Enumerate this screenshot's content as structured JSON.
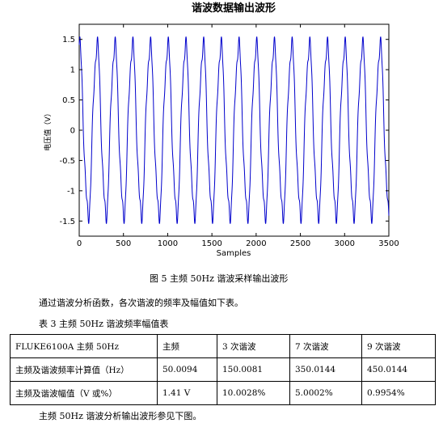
{
  "chart_data": {
    "type": "line",
    "title": "谐波数据输出波形",
    "xlabel": "Samples",
    "ylabel": "电压值（V）",
    "xlim": [
      0,
      3500
    ],
    "ylim": [
      -1.75,
      1.75
    ],
    "x_ticks": [
      "0",
      "500",
      "1000",
      "1500",
      "2000",
      "2500",
      "3000",
      "3500"
    ],
    "y_ticks": [
      "1.5",
      "1",
      "0.5",
      "0",
      "-0.5",
      "-1",
      "-1.5"
    ],
    "grid": false,
    "series": [
      {
        "color": "#0000cc",
        "x_range": [
          0,
          3500
        ],
        "cycles": 17.5,
        "components": [
          {
            "order": 1,
            "amplitude": 1.41,
            "phase_deg": 90
          },
          {
            "order": 3,
            "amplitude": 0.141,
            "phase_deg": 0
          },
          {
            "order": 7,
            "amplitude": 0.0705,
            "phase_deg": 0
          },
          {
            "order": 9,
            "amplitude": 0.0141,
            "phase_deg": 0
          }
        ]
      }
    ]
  },
  "figure_caption": "图 5 主频 50Hz 谐波采样输出波形",
  "paragraph1": "通过谐波分析函数，各次谐波的频率及幅值如下表。",
  "table_caption": "表 3 主频 50Hz 谐波频率幅值表",
  "table": {
    "header": [
      "FLUKE6100A 主频 50Hz",
      "主频",
      "3 次谐波",
      "7 次谐波",
      "9 次谐波"
    ],
    "rows": [
      [
        "主频及谐波频率计算值（Hz）",
        "50.0094",
        "150.0081",
        "350.0144",
        "450.0144"
      ],
      [
        "主频及谐波幅值（V 或%）",
        "1.41 V",
        "10.0028%",
        "5.0002%",
        "0.9954%"
      ]
    ]
  },
  "paragraph2": "主频 50Hz 谐波分析输出波形参见下图。"
}
